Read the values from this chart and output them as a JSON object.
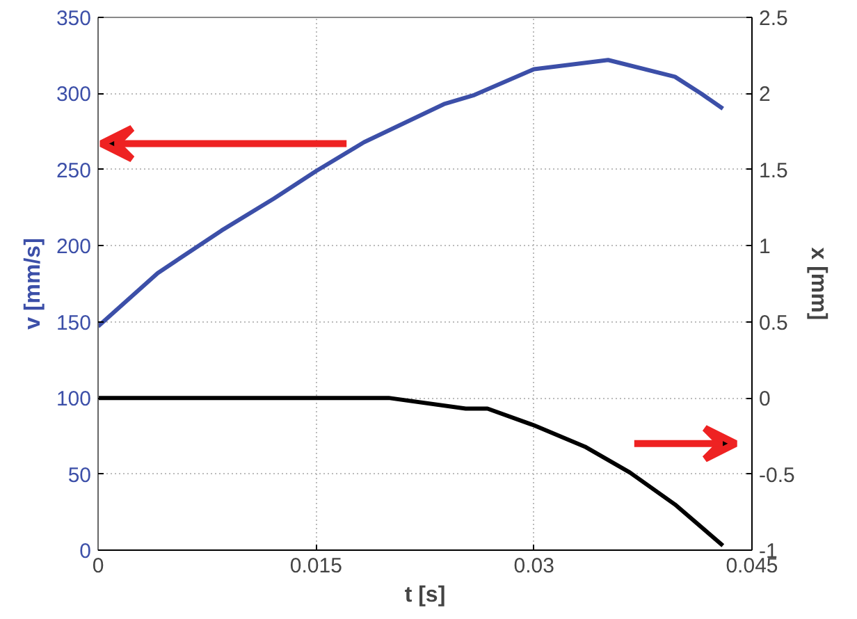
{
  "chart_data": {
    "type": "line",
    "xlabel": "t [s]",
    "ylabel": "v [mm/s]",
    "y2label": "x [mm]",
    "xlim": [
      0,
      0.045
    ],
    "xticks": [
      0,
      0.015,
      0.03,
      0.045
    ],
    "ylim": [
      0,
      350
    ],
    "yticks": [
      0,
      50,
      100,
      150,
      200,
      250,
      300,
      350
    ],
    "y2lim": [
      -1,
      2.5
    ],
    "y2ticks": [
      -1,
      -0.5,
      0,
      0.5,
      1,
      1.5,
      2,
      2.5
    ],
    "grid": true,
    "line_style": "solid",
    "series": [
      {
        "color": "#3c4fa8",
        "x": [
          0,
          0.0041,
          0.0085,
          0.0121,
          0.015,
          0.0183,
          0.0238,
          0.0259,
          0.03,
          0.0351,
          0.0397,
          0.0415,
          0.043
        ],
        "values": [
          147,
          182,
          210,
          231,
          249,
          268,
          293,
          299,
          316,
          322,
          311,
          300,
          290
        ]
      },
      {
        "color": "#000000",
        "axis": "y2",
        "x": [
          0,
          0.01,
          0.02,
          0.0253,
          0.0268,
          0.03,
          0.0335,
          0.0366,
          0.0397,
          0.043
        ],
        "values": [
          0,
          0,
          0,
          -0.07,
          -0.07,
          -0.18,
          -0.32,
          -0.49,
          -0.7,
          -0.97
        ]
      }
    ]
  }
}
